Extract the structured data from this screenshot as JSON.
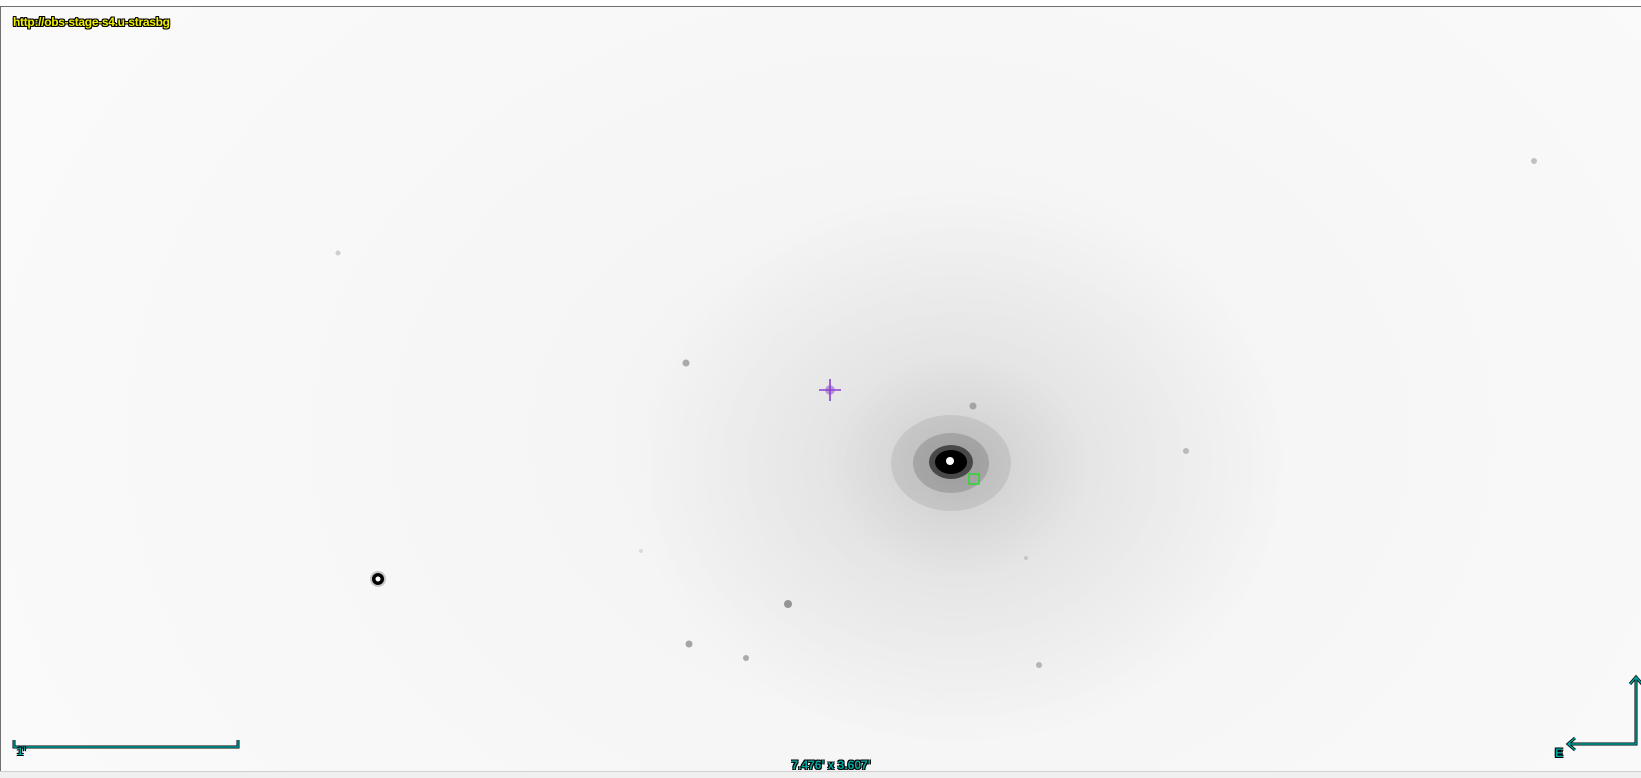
{
  "viewer": {
    "hips_url": "http://obs-stage-s4.u-strasbg",
    "fov": "7.476' x 3.607'",
    "scale_bar_label": "1'",
    "compass_east": "E",
    "colors": {
      "url_text": "#f0f000",
      "overlay": "#00a6a0",
      "reticle": "#8a3fd0",
      "selection_box": "#22dd22"
    }
  },
  "icons": {
    "reticle": "crosshair-reticle",
    "selection": "source-marker-square",
    "compass": "north-east-arrows"
  }
}
